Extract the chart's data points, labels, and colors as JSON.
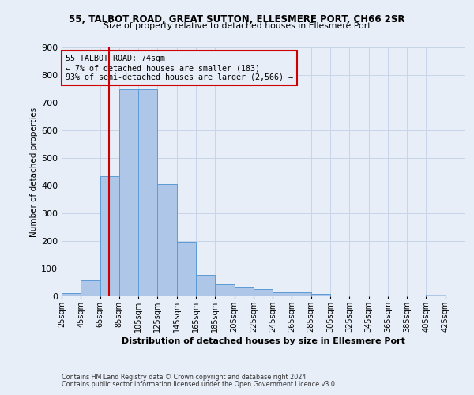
{
  "title1": "55, TALBOT ROAD, GREAT SUTTON, ELLESMERE PORT, CH66 2SR",
  "title2": "Size of property relative to detached houses in Ellesmere Port",
  "xlabel": "Distribution of detached houses by size in Ellesmere Port",
  "ylabel": "Number of detached properties",
  "footnote1": "Contains HM Land Registry data © Crown copyright and database right 2024.",
  "footnote2": "Contains public sector information licensed under the Open Government Licence v3.0.",
  "bar_lefts": [
    25,
    45,
    65,
    85,
    105,
    125,
    145,
    165,
    185,
    205,
    225,
    245,
    265,
    285,
    305,
    325,
    345,
    365,
    385,
    405
  ],
  "bar_heights": [
    12,
    58,
    435,
    750,
    750,
    407,
    197,
    77,
    43,
    35,
    26,
    14,
    14,
    8,
    0,
    0,
    0,
    0,
    0,
    7
  ],
  "bar_color": "#aec6e8",
  "bar_edge_color": "#5b9bd5",
  "vline_x": 74,
  "vline_color": "#cc0000",
  "annotation_text": "55 TALBOT ROAD: 74sqm\n← 7% of detached houses are smaller (183)\n93% of semi-detached houses are larger (2,566) →",
  "annotation_box_color": "#cc0000",
  "ylim": [
    0,
    900
  ],
  "yticks": [
    0,
    100,
    200,
    300,
    400,
    500,
    600,
    700,
    800,
    900
  ],
  "xtick_labels": [
    "25sqm",
    "45sqm",
    "65sqm",
    "85sqm",
    "105sqm",
    "125sqm",
    "145sqm",
    "165sqm",
    "185sqm",
    "205sqm",
    "225sqm",
    "245sqm",
    "265sqm",
    "285sqm",
    "305sqm",
    "325sqm",
    "345sqm",
    "365sqm",
    "385sqm",
    "405sqm",
    "425sqm"
  ],
  "grid_color": "#c8d4e8",
  "bg_color": "#e8eef8"
}
